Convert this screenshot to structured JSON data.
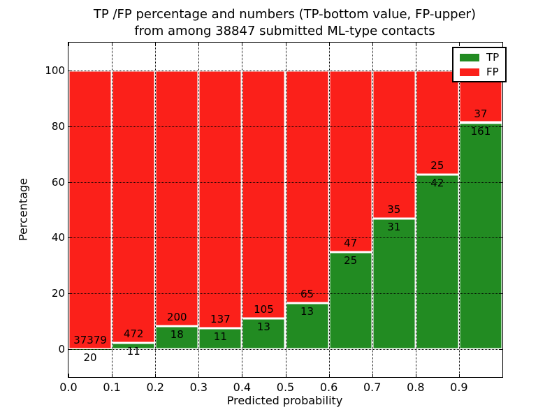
{
  "figure": {
    "title_line1": "TP /FP percentage and numbers (TP-bottom value, FP-upper)",
    "title_line2": "from among 38847 submitted ML-type contacts"
  },
  "chart_data": {
    "type": "bar",
    "variant": "stacked-percentage",
    "title": "TP /FP percentage and numbers (TP-bottom value, FP-upper)\nfrom among 38847 submitted ML-type contacts",
    "title_line1": "TP /FP percentage and numbers (TP-bottom value, FP-upper)",
    "title_line2": "from among 38847 submitted ML-type contacts",
    "xlabel": "Predicted probability",
    "ylabel": "Percentage",
    "total_contacts": 38847,
    "categories": [
      "0.0-0.1",
      "0.1-0.2",
      "0.2-0.3",
      "0.3-0.4",
      "0.4-0.5",
      "0.5-0.6",
      "0.6-0.7",
      "0.7-0.8",
      "0.8-0.9",
      "0.9-1.0"
    ],
    "x_tick_labels": [
      "0.0",
      "0.1",
      "0.2",
      "0.3",
      "0.4",
      "0.5",
      "0.6",
      "0.7",
      "0.8",
      "0.9"
    ],
    "y_ticks": [
      0,
      20,
      40,
      60,
      80,
      100
    ],
    "y_tick_labels": [
      "0",
      "20",
      "40",
      "60",
      "80",
      "100"
    ],
    "xlim": [
      0.0,
      1.0
    ],
    "ylim": [
      -10,
      110
    ],
    "grid": "dotted",
    "legend_position": "upper-right",
    "series": [
      {
        "name": "TP",
        "color": "#228b22",
        "values": [
          20,
          11,
          18,
          11,
          13,
          13,
          25,
          31,
          42,
          161
        ]
      },
      {
        "name": "FP",
        "color": "#fb201a",
        "values": [
          37379,
          472,
          200,
          137,
          105,
          65,
          47,
          35,
          25,
          37
        ]
      }
    ],
    "tp_percent": [
      0.05,
      2.28,
      8.26,
      7.43,
      11.02,
      16.67,
      34.72,
      46.97,
      62.69,
      81.31
    ]
  }
}
